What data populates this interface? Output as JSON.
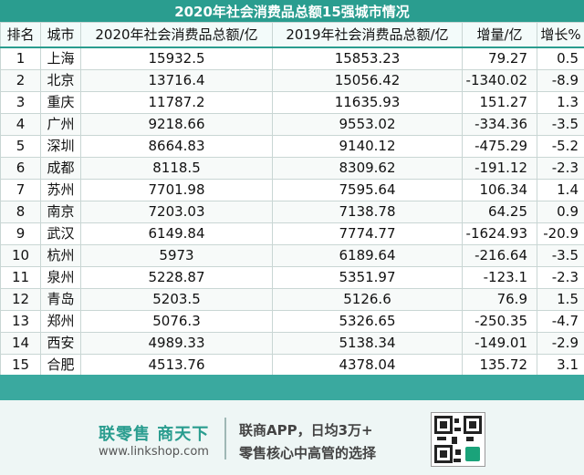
{
  "title": "2020年社会消费品总额15强城市情况",
  "headers": [
    "排名",
    "城市",
    "2020年社会消费品总额/亿",
    "2019年社会消费品总额/亿",
    "增量/亿",
    "增长%"
  ],
  "rows": [
    [
      "1",
      "上海",
      "15932.5",
      "15853.23",
      "79.27",
      "0.5"
    ],
    [
      "2",
      "北京",
      "13716.4",
      "15056.42",
      "-1340.02",
      "-8.9"
    ],
    [
      "3",
      "重庆",
      "11787.2",
      "11635.93",
      "151.27",
      "1.3"
    ],
    [
      "4",
      "广州",
      "9218.66",
      "9553.02",
      "-334.36",
      "-3.5"
    ],
    [
      "5",
      "深圳",
      "8664.83",
      "9140.12",
      "-475.29",
      "-5.2"
    ],
    [
      "6",
      "成都",
      "8118.5",
      "8309.62",
      "-191.12",
      "-2.3"
    ],
    [
      "7",
      "苏州",
      "7701.98",
      "7595.64",
      "106.34",
      "1.4"
    ],
    [
      "8",
      "南京",
      "7203.03",
      "7138.78",
      "64.25",
      "0.9"
    ],
    [
      "9",
      "武汉",
      "6149.84",
      "7774.77",
      "-1624.93",
      "-20.9"
    ],
    [
      "10",
      "杭州",
      "5973",
      "6189.64",
      "-216.64",
      "-3.5"
    ],
    [
      "11",
      "泉州",
      "5228.87",
      "5351.97",
      "-123.1",
      "-2.3"
    ],
    [
      "12",
      "青岛",
      "5203.5",
      "5126.6",
      "76.9",
      "1.5"
    ],
    [
      "13",
      "郑州",
      "5076.3",
      "5326.65",
      "-250.35",
      "-4.7"
    ],
    [
      "14",
      "西安",
      "4989.33",
      "5138.34",
      "-149.01",
      "-2.9"
    ],
    [
      "15",
      "合肥",
      "4513.76",
      "4378.04",
      "135.72",
      "3.1"
    ]
  ],
  "footer": {
    "brand": "联零售 商天下",
    "site": "www.linkshop.com",
    "slogan_line1": "联商APP，日均3万+",
    "slogan_line2": "零售核心中高管的选择",
    "qr_icon": "qr-code-icon"
  },
  "colors": {
    "accent": "#2a9d8f",
    "footer_bg": "#eef6f5"
  }
}
